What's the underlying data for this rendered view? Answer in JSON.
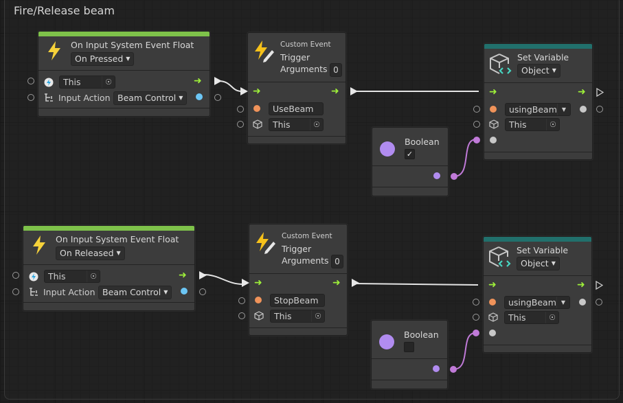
{
  "group": {
    "title": "Fire/Release beam"
  },
  "colors": {
    "event_bar": "#7ec24a",
    "variable_bar": "#21706c",
    "flow": "#9ef03a",
    "string_port": "#f0935a",
    "float_port": "#6cc6f5",
    "bool_port": "#b18cf0",
    "wire_bool": "#c07ad8"
  },
  "pressed": {
    "event": {
      "icon": "lightning-icon",
      "title": "On Input System Event Float",
      "mode": "On Pressed",
      "target": "This",
      "input_action_label": "Input Action",
      "input_action": "Beam Control"
    },
    "trigger": {
      "icon": "lightning-pencil-icon",
      "subtitle": "Custom Event",
      "title1": "Trigger",
      "title2": "Arguments",
      "arguments": "0",
      "name": "UseBeam",
      "target": "This"
    },
    "set_variable": {
      "icon": "cube-code-icon",
      "title": "Set Variable",
      "kind": "Object",
      "variable": "usingBeam",
      "target": "This"
    },
    "boolean": {
      "title": "Boolean",
      "checked": true,
      "check_glyph": "✓"
    }
  },
  "released": {
    "event": {
      "icon": "lightning-icon",
      "title": "On Input System Event Float",
      "mode": "On Released",
      "target": "This",
      "input_action_label": "Input Action",
      "input_action": "Beam Control"
    },
    "trigger": {
      "icon": "lightning-pencil-icon",
      "subtitle": "Custom Event",
      "title1": "Trigger",
      "title2": "Arguments",
      "arguments": "0",
      "name": "StopBeam",
      "target": "This"
    },
    "set_variable": {
      "icon": "cube-code-icon",
      "title": "Set Variable",
      "kind": "Object",
      "variable": "usingBeam",
      "target": "This"
    },
    "boolean": {
      "title": "Boolean",
      "checked": false,
      "check_glyph": ""
    }
  }
}
